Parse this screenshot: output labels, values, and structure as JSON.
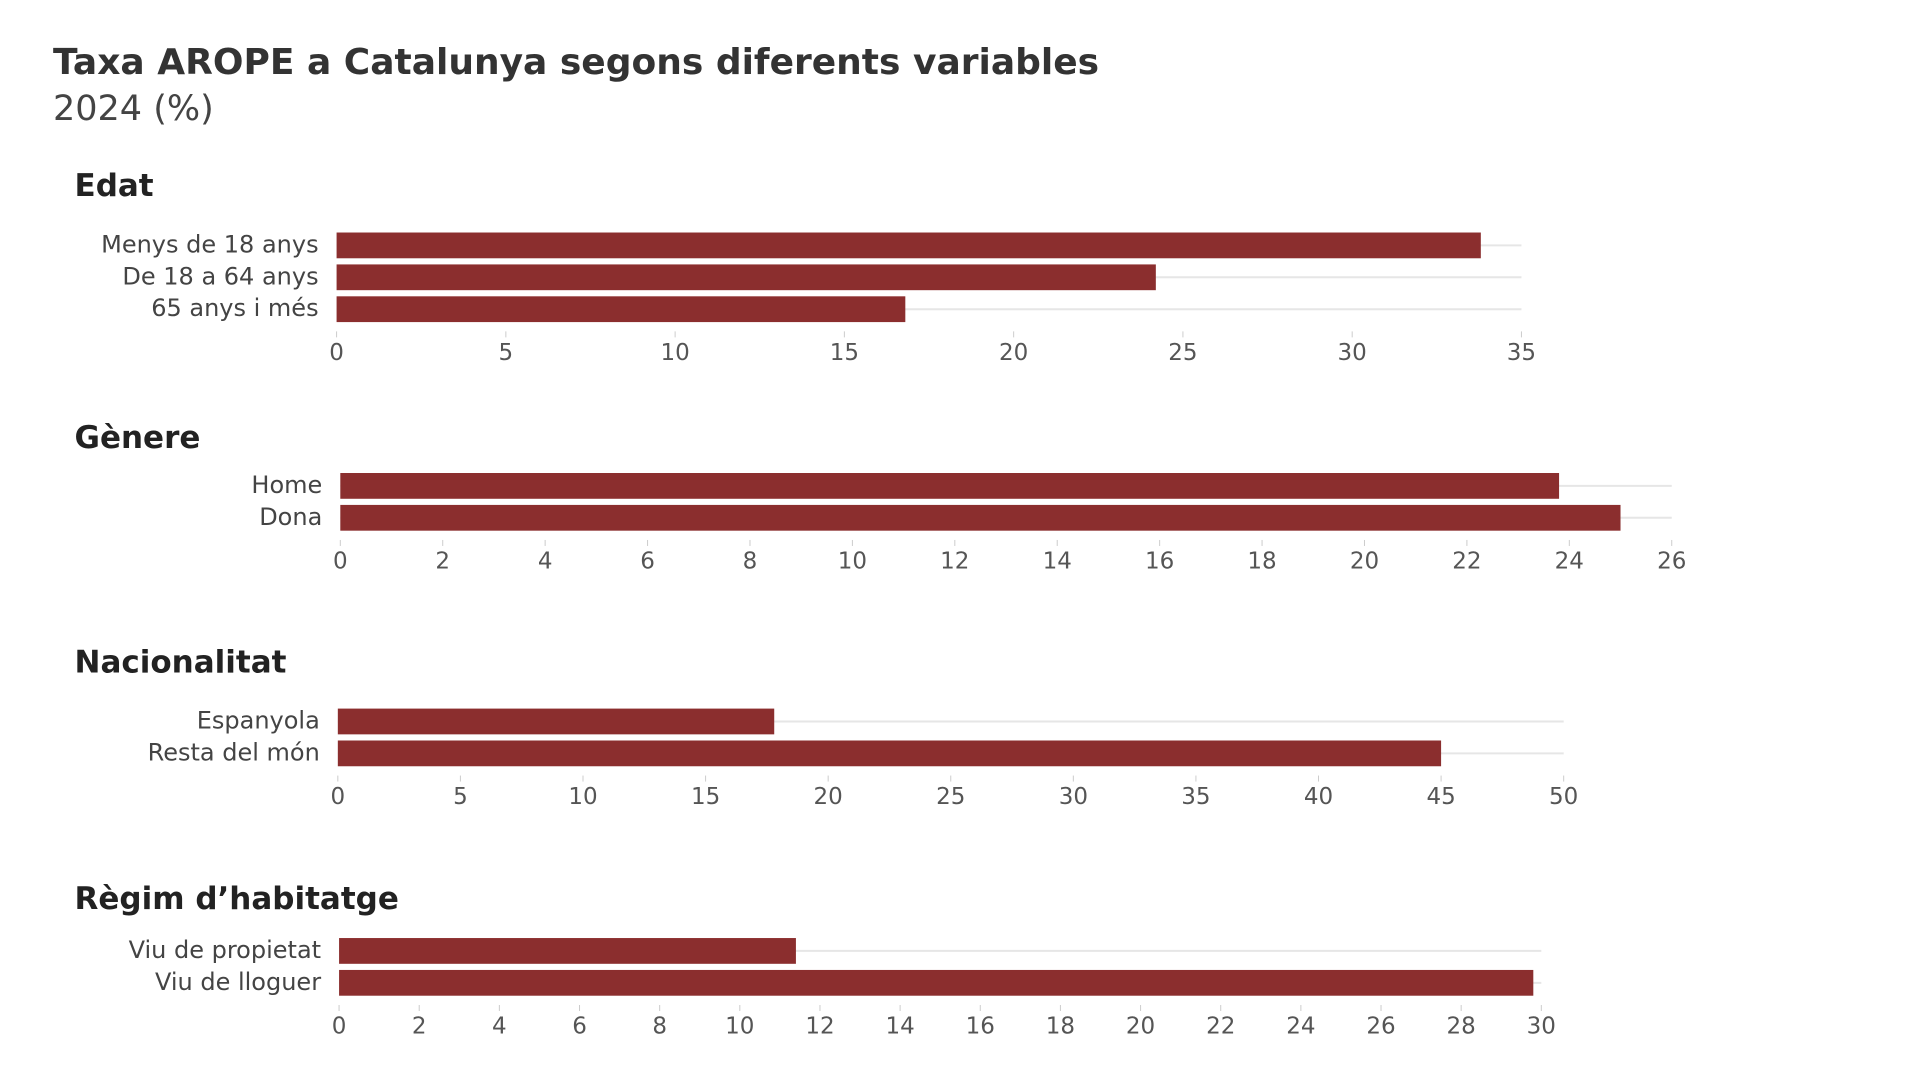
{
  "title": "Taxa AROPE a Catalunya segons diferents variables",
  "subtitle": "2024 (%)",
  "chart_data": [
    {
      "type": "bar",
      "orientation": "horizontal",
      "title": "Edat",
      "color": "#8b2e2e",
      "categories": [
        "Menys de 18 anys",
        "De 18 a 64 anys",
        "65 anys i més"
      ],
      "values": [
        33.8,
        24.2,
        16.8
      ],
      "xlim": [
        0,
        35
      ],
      "xticks": [
        0,
        5,
        10,
        15,
        20,
        25,
        30,
        35
      ]
    },
    {
      "type": "bar",
      "orientation": "horizontal",
      "title": "Gènere",
      "color": "#8b2e2e",
      "categories": [
        "Home",
        "Dona"
      ],
      "values": [
        23.8,
        25.0
      ],
      "xlim": [
        0,
        26
      ],
      "xticks": [
        0,
        2,
        4,
        6,
        8,
        10,
        12,
        14,
        16,
        18,
        20,
        22,
        24,
        26
      ]
    },
    {
      "type": "bar",
      "orientation": "horizontal",
      "title": "Nacionalitat",
      "color": "#8b2e2e",
      "categories": [
        "Espanyola",
        "Resta del món"
      ],
      "values": [
        17.8,
        45.0
      ],
      "xlim": [
        0,
        50
      ],
      "xticks": [
        0,
        5,
        10,
        15,
        20,
        25,
        30,
        35,
        40,
        45,
        50
      ]
    },
    {
      "type": "bar",
      "orientation": "horizontal",
      "title": "Règim d’habitatge",
      "color": "#8b2e2e",
      "categories": [
        "Viu de propietat",
        "Viu de lloguer"
      ],
      "values": [
        11.4,
        29.8
      ],
      "xlim": [
        0,
        30
      ],
      "xticks": [
        0,
        2,
        4,
        6,
        8,
        10,
        12,
        14,
        16,
        18,
        20,
        22,
        24,
        26,
        28,
        30
      ]
    }
  ]
}
